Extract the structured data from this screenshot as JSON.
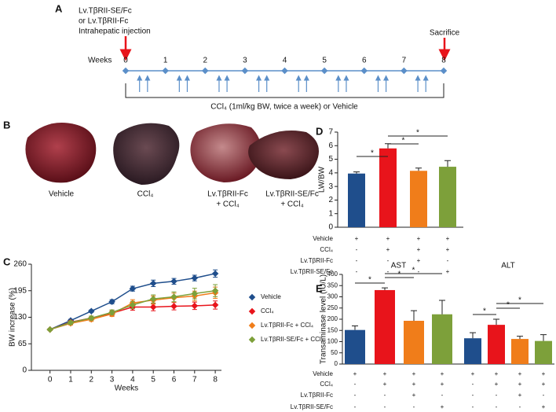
{
  "panel_a": {
    "letter": "A",
    "injection_lines": [
      "Lv.TβRII-SE/Fc",
      "or Lv.TβRII-Fc",
      "Intrahepatic injection"
    ],
    "sacrifice": "Sacrifice",
    "weeks_label": "Weeks",
    "weeks": [
      0,
      1,
      2,
      3,
      4,
      5,
      6,
      7,
      8
    ],
    "treatment": "CCl₄  (1ml/kg BW, twice a week) or Vehicle"
  },
  "panel_b": {
    "letter": "B",
    "labels": [
      [
        "Vehicle"
      ],
      [
        "CCl₄"
      ],
      [
        "Lv.TβRII-Fc",
        "+ CCl₄"
      ],
      [
        "Lv.TβRII-SE/Fc",
        "+ CCl₄"
      ]
    ]
  },
  "chart_data": [
    {
      "type": "line",
      "panel": "C",
      "x_label": "Weeks",
      "y_label": "BW increase (%)",
      "x": [
        0,
        1,
        2,
        3,
        4,
        5,
        6,
        7,
        8
      ],
      "xlim": [
        -0.9,
        8.3
      ],
      "xticks": [
        0,
        1,
        2,
        3,
        4,
        5,
        6,
        7,
        8
      ],
      "ylim": [
        0,
        260
      ],
      "yticks": [
        0,
        65,
        130,
        195,
        260
      ],
      "legend": "right",
      "series": [
        {
          "name": "Vehicle",
          "color": "#1f4e8c",
          "values": [
            100,
            122,
            145,
            168,
            200,
            213,
            218,
            226,
            237
          ],
          "errors": [
            2,
            3,
            3,
            5,
            6,
            8,
            7,
            7,
            9
          ]
        },
        {
          "name": "CCl₄",
          "color": "#e8141b",
          "values": [
            100,
            118,
            128,
            140,
            155,
            155,
            157,
            158,
            160
          ],
          "errors": [
            2,
            4,
            5,
            6,
            8,
            9,
            9,
            9,
            10
          ]
        },
        {
          "name": "Lv.TβRII-Fc + CCl₄",
          "color": "#f07d1a",
          "values": [
            100,
            115,
            125,
            138,
            165,
            172,
            178,
            182,
            190
          ],
          "errors": [
            2,
            4,
            5,
            6,
            8,
            10,
            11,
            12,
            14
          ]
        },
        {
          "name": "Lv.TβRII-SE/Fc + CCl₄",
          "color": "#7da03a",
          "values": [
            100,
            117,
            128,
            142,
            160,
            175,
            180,
            188,
            195
          ],
          "errors": [
            2,
            4,
            5,
            6,
            9,
            10,
            12,
            13,
            15
          ]
        }
      ]
    },
    {
      "type": "bar",
      "panel": "D",
      "y_label": "LW/BW",
      "ylim": [
        0,
        7
      ],
      "yticks": [
        0,
        1,
        2,
        3,
        4,
        5,
        6,
        7
      ],
      "values": [
        3.95,
        5.8,
        4.15,
        4.45
      ],
      "errors": [
        0.12,
        0.35,
        0.2,
        0.45
      ],
      "colors": [
        "#1f4e8c",
        "#e8141b",
        "#f07d1a",
        "#7da03a"
      ],
      "annotations": [
        "*",
        "*",
        "*"
      ],
      "conditions": [
        {
          "label": "Vehicle",
          "marks": [
            "+",
            "+",
            "+",
            "+"
          ]
        },
        {
          "label": "CCl₄",
          "marks": [
            "-",
            "+",
            "+",
            "+"
          ]
        },
        {
          "label": "Lv.TβRII-Fc",
          "marks": [
            "-",
            "-",
            "+",
            "-"
          ]
        },
        {
          "label": "Lv.TβRII-SE/Fc",
          "marks": [
            "-",
            "-",
            "-",
            "+"
          ]
        }
      ]
    },
    {
      "type": "grouped_bar",
      "panel": "E",
      "y_label": "Transaminase level (IU/L)",
      "categories": [
        "AST",
        "ALT"
      ],
      "ylim": [
        0,
        400
      ],
      "yticks": [
        0,
        50,
        100,
        150,
        200,
        250,
        300,
        350,
        400
      ],
      "series": [
        {
          "color": "#1f4e8c",
          "values": [
            152,
            115
          ],
          "errors": [
            18,
            25
          ]
        },
        {
          "color": "#e8141b",
          "values": [
            330,
            175
          ],
          "errors": [
            10,
            25
          ]
        },
        {
          "color": "#f07d1a",
          "values": [
            193,
            112
          ],
          "errors": [
            45,
            12
          ]
        },
        {
          "color": "#7da03a",
          "values": [
            222,
            103
          ],
          "errors": [
            62,
            28
          ]
        }
      ],
      "annotations": [
        "*",
        "*",
        "*",
        "*",
        "*",
        "*"
      ],
      "conditions": [
        {
          "label": "Vehicle",
          "marks": [
            "+",
            "+",
            "+",
            "+",
            "+",
            "+",
            "+",
            "+"
          ]
        },
        {
          "label": "CCl₄",
          "marks": [
            "-",
            "+",
            "+",
            "+",
            "-",
            "+",
            "+",
            "+"
          ]
        },
        {
          "label": "Lv.TβRII-Fc",
          "marks": [
            "-",
            "-",
            "+",
            "-",
            "-",
            "-",
            "+",
            "-"
          ]
        },
        {
          "label": "Lv.TβRII-SE/Fc",
          "marks": [
            "-",
            "-",
            "-",
            "+",
            "-",
            "-",
            "-",
            "+"
          ]
        }
      ]
    }
  ]
}
